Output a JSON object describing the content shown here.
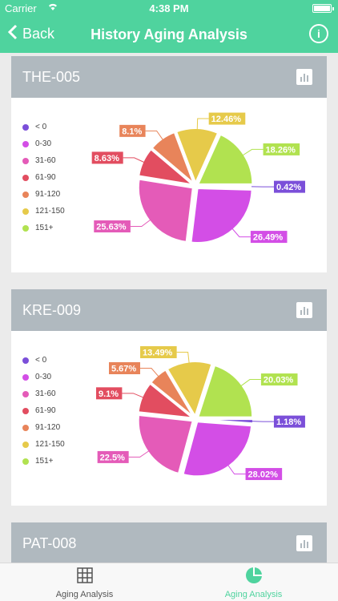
{
  "status": {
    "carrier": "Carrier",
    "time": "4:38 PM"
  },
  "nav": {
    "back_label": "Back",
    "title": "History Aging Analysis"
  },
  "cards": [
    {
      "title": "THE-005",
      "legend": [
        "< 0",
        "0-30",
        "31-60",
        "61-90",
        "91-120",
        "121-150",
        "151+"
      ],
      "chart_data": {
        "type": "pie",
        "categories": [
          "< 0",
          "0-30",
          "31-60",
          "61-90",
          "91-120",
          "121-150",
          "151+"
        ],
        "values": [
          0.42,
          26.49,
          25.63,
          8.63,
          8.1,
          12.46,
          18.26
        ],
        "labels": [
          "0.42%",
          "26.49%",
          "25.63%",
          "8.63%",
          "8.1%",
          "12.46%",
          "18.26%"
        ],
        "colors": [
          "#7b4fd9",
          "#d34ee6",
          "#e45bb8",
          "#e24d60",
          "#e8845a",
          "#e6ca4a",
          "#b1e250"
        ]
      }
    },
    {
      "title": "KRE-009",
      "legend": [
        "< 0",
        "0-30",
        "31-60",
        "61-90",
        "91-120",
        "121-150",
        "151+"
      ],
      "chart_data": {
        "type": "pie",
        "categories": [
          "< 0",
          "0-30",
          "31-60",
          "61-90",
          "91-120",
          "121-150",
          "151+"
        ],
        "values": [
          1.18,
          28.02,
          22.5,
          9.1,
          5.67,
          13.49,
          20.03
        ],
        "labels": [
          "1.18%",
          "28.02%",
          "22.5%",
          "9.1%",
          "5.67%",
          "13.49%",
          "20.03%"
        ],
        "colors": [
          "#7b4fd9",
          "#d34ee6",
          "#e45bb8",
          "#e24d60",
          "#e8845a",
          "#e6ca4a",
          "#b1e250"
        ]
      }
    },
    {
      "title": "PAT-008"
    }
  ],
  "tabs": [
    {
      "label": "Aging Analysis",
      "icon": "grid-icon",
      "color": "#555555"
    },
    {
      "label": "Aging Analysis",
      "icon": "pie-icon",
      "color": "#4fd39e"
    }
  ]
}
